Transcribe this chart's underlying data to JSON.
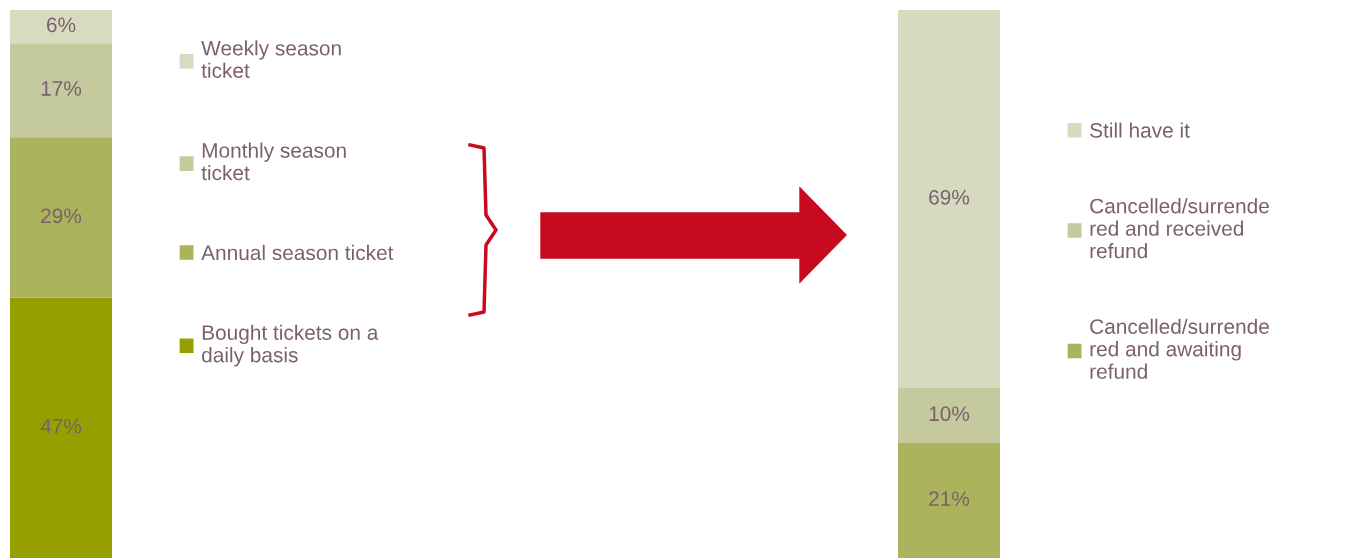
{
  "chart_data": [
    {
      "type": "bar",
      "stacked": true,
      "categories": [
        null
      ],
      "tick_labels": false,
      "legend": "right",
      "series": [
        {
          "name": "Bought tickets on a\ndaily basis",
          "color": "#95a000",
          "values": [
            47
          ],
          "value_labels": [
            "47%"
          ]
        },
        {
          "name": "Annual season ticket",
          "color": "#abb45c",
          "values": [
            29
          ],
          "value_labels": [
            "29%"
          ]
        },
        {
          "name": "Monthly season\nticket",
          "color": "#c5ca9e",
          "values": [
            17
          ],
          "value_labels": [
            "17%"
          ]
        },
        {
          "name": "Weekly season\nticket",
          "color": "#d8dbc0",
          "values": [
            6
          ],
          "value_labels": [
            "6%"
          ]
        }
      ]
    },
    {
      "type": "bar",
      "stacked": true,
      "categories": [
        null
      ],
      "tick_labels": false,
      "legend": "right",
      "series": [
        {
          "name": "Cancelled/surrende\nred and awaiting\nrefund",
          "color": "#abb45c",
          "values": [
            21
          ],
          "value_labels": [
            "21%"
          ]
        },
        {
          "name": "Cancelled/surrende\nred and received\nrefund",
          "color": "#c5ca9e",
          "values": [
            10
          ],
          "value_labels": [
            "10%"
          ]
        },
        {
          "name": "Still have it",
          "color": "#d6dabe",
          "values": [
            69
          ],
          "value_labels": [
            "69%"
          ]
        }
      ]
    }
  ]
}
